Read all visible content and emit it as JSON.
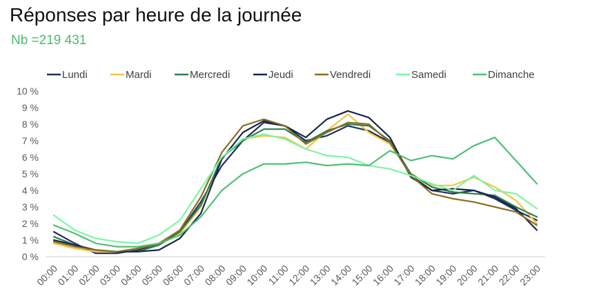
{
  "title": "Réponses par heure de la journée",
  "subtitle": "Nb =219 431",
  "chart_data": {
    "type": "line",
    "categories": [
      "00:00",
      "01:00",
      "02:00",
      "03:00",
      "04:00",
      "05:00",
      "06:00",
      "07:00",
      "08:00",
      "09:00",
      "10:00",
      "11:00",
      "12:00",
      "13:00",
      "14:00",
      "15:00",
      "16:00",
      "17:00",
      "18:00",
      "19:00",
      "20:00",
      "21:00",
      "22:00",
      "23:00"
    ],
    "yticks": [
      "0 %",
      "1 %",
      "2 %",
      "3 %",
      "4 %",
      "5 %",
      "6 %",
      "7 %",
      "8 %",
      "9 %",
      "10 %"
    ],
    "ylim": [
      0,
      10
    ],
    "legend_position": "top",
    "grid": false,
    "series": [
      {
        "name": "Lundi",
        "color": "#1f2f5e",
        "values": [
          1.5,
          0.8,
          0.2,
          0.2,
          0.4,
          0.7,
          1.5,
          3.3,
          5.5,
          7.0,
          8.1,
          7.9,
          7.0,
          7.3,
          7.9,
          7.6,
          6.9,
          4.9,
          4.0,
          3.8,
          4.0,
          3.5,
          2.8,
          2.2
        ]
      },
      {
        "name": "Mardi",
        "color": "#f5c242",
        "values": [
          0.8,
          0.5,
          0.3,
          0.3,
          0.3,
          0.7,
          1.4,
          3.0,
          6.0,
          7.1,
          7.3,
          7.2,
          6.5,
          7.6,
          8.6,
          7.5,
          6.8,
          5.0,
          4.3,
          4.3,
          4.8,
          4.2,
          3.4,
          2.0
        ]
      },
      {
        "name": "Mercredi",
        "color": "#2e7d4f",
        "values": [
          1.2,
          0.7,
          0.4,
          0.3,
          0.3,
          0.7,
          1.5,
          3.1,
          6.0,
          7.0,
          7.7,
          7.7,
          6.9,
          7.6,
          8.0,
          7.9,
          7.0,
          5.0,
          4.2,
          3.9,
          3.8,
          3.7,
          3.0,
          2.4
        ]
      },
      {
        "name": "Jeudi",
        "color": "#16264e",
        "values": [
          1.0,
          0.7,
          0.4,
          0.3,
          0.3,
          0.4,
          1.1,
          2.6,
          5.9,
          7.5,
          8.2,
          7.9,
          7.2,
          8.3,
          8.8,
          8.4,
          7.2,
          4.8,
          4.0,
          4.1,
          4.0,
          3.6,
          2.9,
          1.6
        ]
      },
      {
        "name": "Vendredi",
        "color": "#8a6d22",
        "values": [
          0.9,
          0.6,
          0.4,
          0.3,
          0.5,
          0.8,
          1.6,
          3.6,
          6.3,
          7.9,
          8.3,
          7.9,
          6.8,
          7.5,
          8.1,
          8.0,
          6.9,
          4.9,
          3.8,
          3.5,
          3.3,
          3.0,
          2.7,
          1.9
        ]
      },
      {
        "name": "Samedi",
        "color": "#7df5a6",
        "values": [
          2.5,
          1.6,
          1.1,
          0.9,
          0.8,
          1.3,
          2.2,
          4.1,
          6.0,
          7.1,
          7.4,
          7.1,
          6.5,
          6.1,
          6.0,
          5.5,
          5.3,
          4.9,
          4.4,
          4.0,
          4.9,
          4.0,
          3.8,
          2.9
        ]
      },
      {
        "name": "Dimanche",
        "color": "#4fbf73",
        "values": [
          1.9,
          1.4,
          0.8,
          0.6,
          0.6,
          0.8,
          1.3,
          2.4,
          4.0,
          5.0,
          5.6,
          5.6,
          5.7,
          5.5,
          5.6,
          5.5,
          6.4,
          5.8,
          6.1,
          5.9,
          6.7,
          7.2,
          5.8,
          4.4
        ]
      }
    ]
  }
}
